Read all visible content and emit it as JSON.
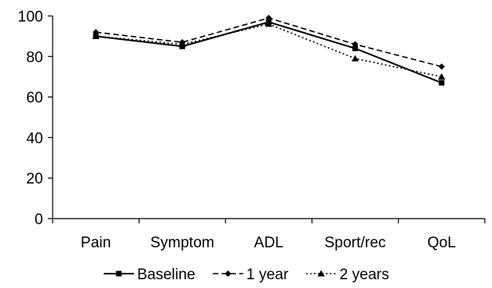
{
  "chart_data": {
    "type": "line",
    "categories": [
      "Pain",
      "Symptom",
      "ADL",
      "Sport/rec",
      "QoL"
    ],
    "ylim": [
      0,
      100
    ],
    "yticks": [
      0,
      20,
      40,
      60,
      80,
      100
    ],
    "grid": false,
    "legend_position": "bottom",
    "series": [
      {
        "name": "Baseline",
        "values": [
          90,
          85,
          97,
          84,
          67
        ],
        "line_style": "solid",
        "marker": "square",
        "color": "#000000"
      },
      {
        "name": "1 year",
        "values": [
          92,
          87,
          99,
          86,
          75
        ],
        "line_style": "dashed",
        "marker": "diamond",
        "color": "#000000"
      },
      {
        "name": "2 years",
        "values": [
          90,
          86,
          96,
          79,
          70
        ],
        "line_style": "dotted",
        "marker": "triangle",
        "color": "#000000"
      }
    ]
  }
}
